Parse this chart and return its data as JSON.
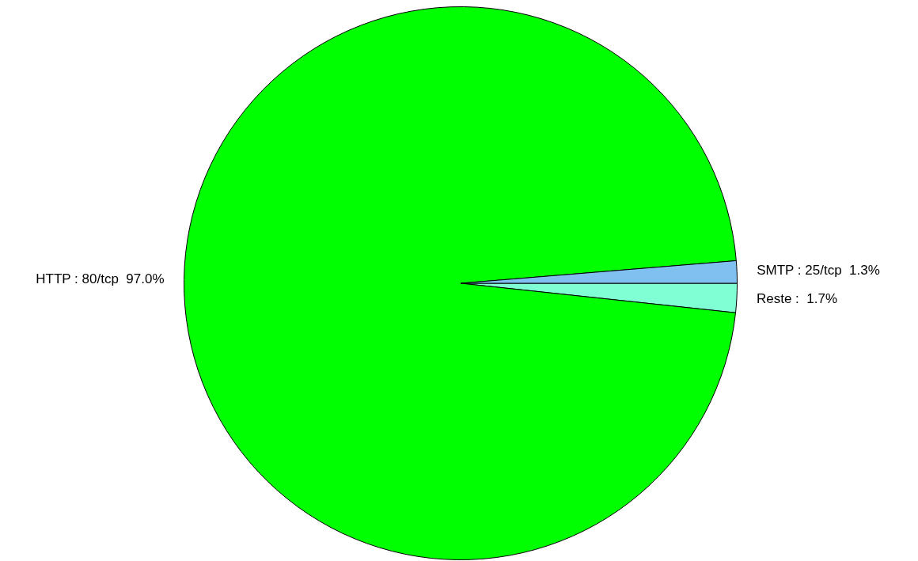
{
  "chart_data": {
    "type": "pie",
    "categories": [
      "Reste",
      "HTTP : 80/tcp",
      "SMTP : 25/tcp"
    ],
    "values": [
      1.7,
      97.0,
      1.3
    ],
    "value_labels": [
      "1.7%",
      "97.0%",
      "1.3%"
    ],
    "colors": [
      "#80ffd4",
      "#00ff00",
      "#80c0f0"
    ],
    "legend": false
  }
}
